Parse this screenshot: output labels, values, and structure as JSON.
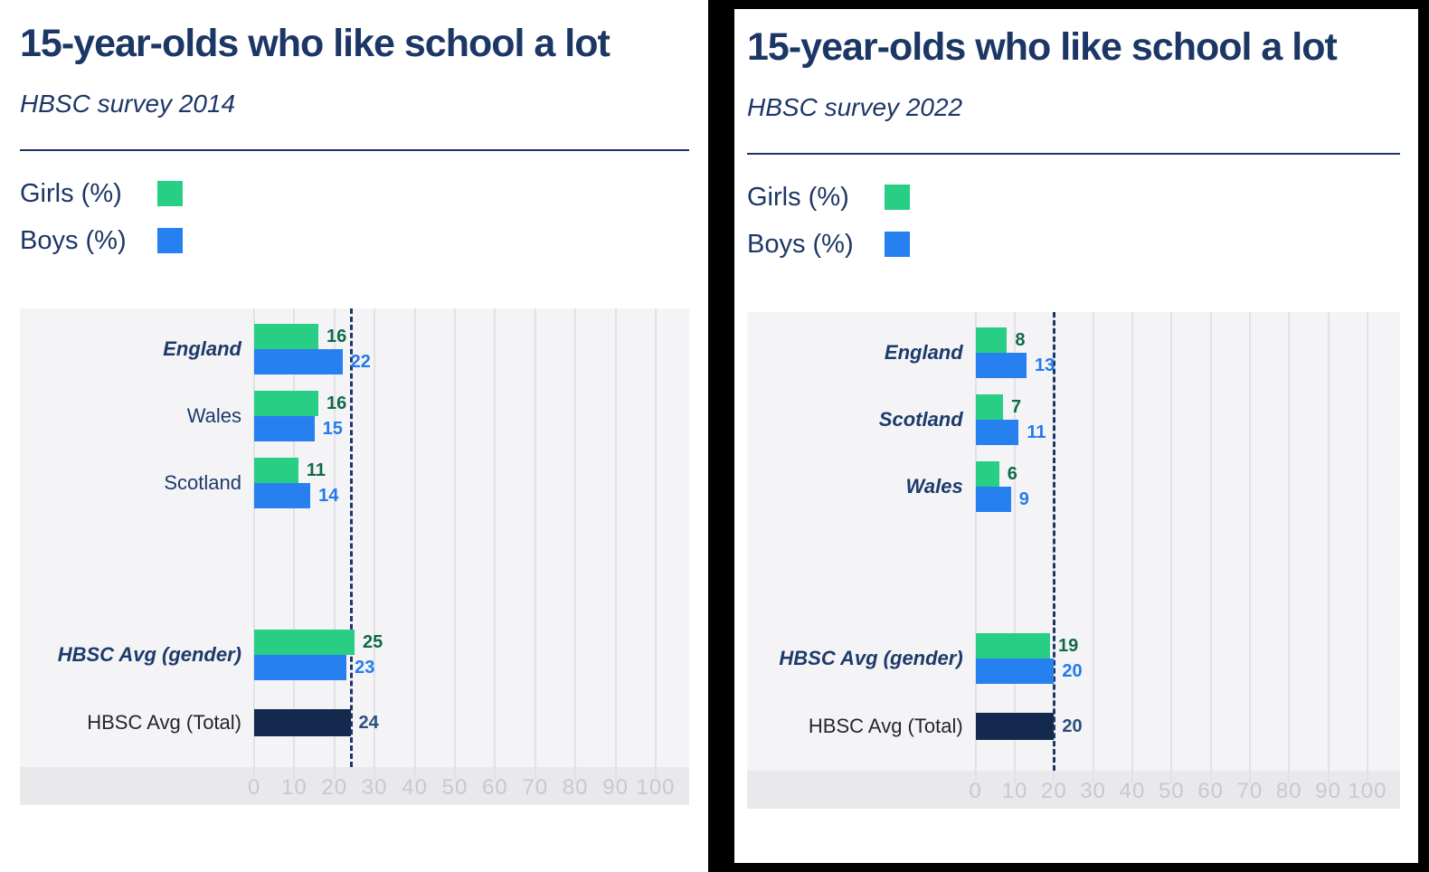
{
  "colors": {
    "navy": "#1c3766",
    "girls": "#29ce85",
    "boys": "#2680f0",
    "total_bar": "#14294e",
    "girls_value_text": "#10694a",
    "boys_value_text": "#2479ee",
    "total_value_text": "#2d4c80",
    "plot_background": "#f4f4f6",
    "axis_strip_background": "#e9e9ec",
    "gridline": "#e2e2e6",
    "tick_text": "#c8c8cf"
  },
  "chart_data": [
    {
      "type": "bar",
      "orientation": "horizontal",
      "title": "15-year-olds who like school a lot",
      "subtitle": "HBSC survey 2014",
      "legend": [
        {
          "label": "Girls (%)",
          "series": "girls"
        },
        {
          "label": "Boys (%)",
          "series": "boys"
        }
      ],
      "xlim": [
        0,
        100
      ],
      "ticks": [
        0,
        10,
        20,
        30,
        40,
        50,
        60,
        70,
        80,
        90,
        100
      ],
      "reference_line": 24,
      "rows": [
        {
          "label": "England",
          "emphasis": true,
          "girls": 16,
          "boys": 22
        },
        {
          "label": "Wales",
          "emphasis": false,
          "girls": 16,
          "boys": 15
        },
        {
          "label": "Scotland",
          "emphasis": false,
          "girls": 11,
          "boys": 14
        },
        {
          "label": "HBSC Avg (gender)",
          "emphasis": true,
          "girls": 25,
          "boys": 23
        },
        {
          "label": "HBSC Avg (Total)",
          "emphasis": false,
          "total": 24
        }
      ]
    },
    {
      "type": "bar",
      "orientation": "horizontal",
      "title": "15-year-olds who like school a lot",
      "subtitle": "HBSC survey 2022",
      "legend": [
        {
          "label": "Girls (%)",
          "series": "girls"
        },
        {
          "label": "Boys (%)",
          "series": "boys"
        }
      ],
      "xlim": [
        0,
        100
      ],
      "ticks": [
        0,
        10,
        20,
        30,
        40,
        50,
        60,
        70,
        80,
        90,
        100
      ],
      "reference_line": 20,
      "rows": [
        {
          "label": "England",
          "emphasis": true,
          "girls": 8,
          "boys": 13
        },
        {
          "label": "Scotland",
          "emphasis": true,
          "girls": 7,
          "boys": 11
        },
        {
          "label": "Wales",
          "emphasis": true,
          "girls": 6,
          "boys": 9
        },
        {
          "label": "HBSC Avg (gender)",
          "emphasis": true,
          "girls": 19,
          "boys": 20
        },
        {
          "label": "HBSC Avg (Total)",
          "emphasis": false,
          "total": 20
        }
      ]
    }
  ]
}
